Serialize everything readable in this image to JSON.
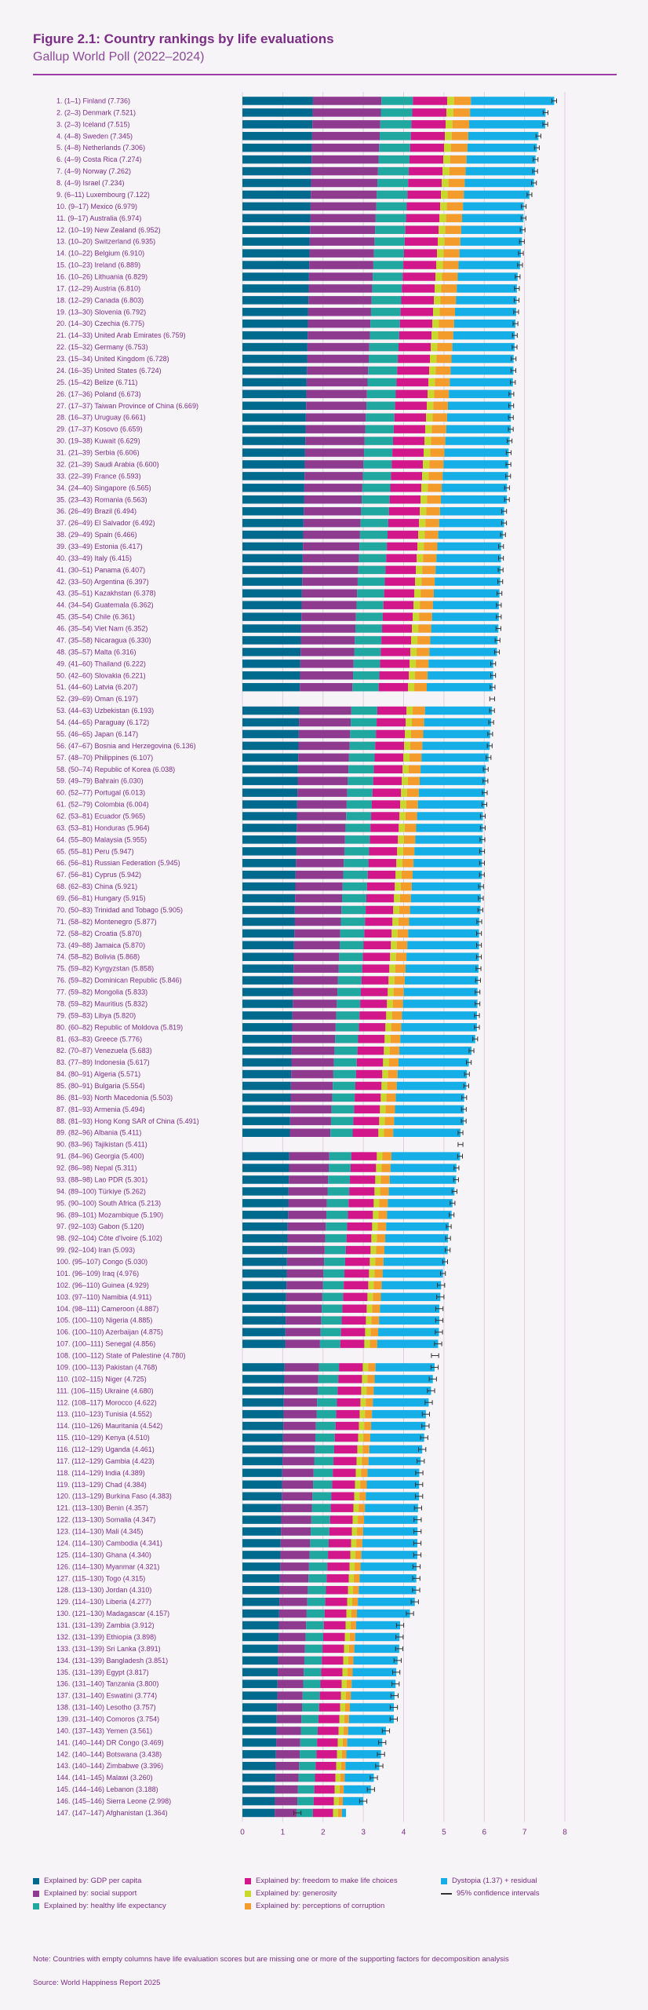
{
  "header": {
    "title": "Figure 2.1: Country rankings by life evaluations",
    "subtitle": "Gallup World Poll (2022–2024)"
  },
  "legend": [
    {
      "label": "Explained by: GDP per capita",
      "color": "#006a8e"
    },
    {
      "label": "Explained by: social support",
      "color": "#8e3a8e"
    },
    {
      "label": "Explained by: healthy life expectancy",
      "color": "#1fa7a0"
    },
    {
      "label": "Explained by: freedom to make life choices",
      "color": "#d1178a"
    },
    {
      "label": "Explained by: generosity",
      "color": "#c8d82d"
    },
    {
      "label": "Explained by: perceptions of corruption",
      "color": "#f39c2b"
    },
    {
      "label": "Dystopia (1.37) + residual",
      "color": "#16aee6"
    },
    {
      "label": "95% confidence intervals",
      "color": "#333333"
    }
  ],
  "note": "Note: Countries with empty columns have life evaluation scores but are missing one or more of the supporting factors for decomposition analysis",
  "source": "Source: World Happiness Report 2025",
  "chart_data": {
    "type": "bar",
    "stacked": true,
    "orientation": "horizontal",
    "xlim": [
      0,
      8
    ],
    "xticks": [
      "0",
      "1",
      "2",
      "3",
      "4",
      "5",
      "6",
      "7",
      "8"
    ],
    "grid": true,
    "dystopia": 1.37,
    "labels": [
      "1. (1–1) Finland (7.736)",
      "2. (2–3) Denmark (7.521)",
      "3. (2–3) Iceland (7.515)",
      "4. (4–8) Sweden (7.345)",
      "5. (4–8) Netherlands (7.306)",
      "6. (4–9) Costa Rica (7.274)",
      "7. (4–9) Norway (7.262)",
      "8. (4–9) Israel (7.234)",
      "9. (6–11) Luxembourg (7.122)",
      "10. (9–17) Mexico (6.979)",
      "11. (9–17) Australia (6.974)",
      "12. (10–19) New Zealand (6.952)",
      "13. (10–20) Switzerland (6.935)",
      "14. (10–22) Belgium (6.910)",
      "15. (10–23) Ireland (6.889)",
      "16. (10–26) Lithuania (6.829)",
      "17. (12–29) Austria (6.810)",
      "18. (12–29) Canada (6.803)",
      "19. (13–30) Slovenia (6.792)",
      "20. (14–30) Czechia (6.775)",
      "21. (14–33) United Arab Emirates (6.759)",
      "22. (15–32) Germany (6.753)",
      "23. (15–34) United Kingdom (6.728)",
      "24. (16–35) United States (6.724)",
      "25. (15–42) Belize (6.711)",
      "26. (17–36) Poland (6.673)",
      "27. (17–37) Taiwan Province of China (6.669)",
      "28. (16–37) Uruguay (6.661)",
      "29. (17–37) Kosovo (6.659)",
      "30. (19–38) Kuwait (6.629)",
      "31. (21–39) Serbia (6.606)",
      "32. (21–39) Saudi Arabia (6.600)",
      "33. (22–39) France (6.593)",
      "34. (24–40) Singapore (6.565)",
      "35. (23–43) Romania (6.563)",
      "36. (26–49) Brazil (6.494)",
      "37. (26–49) El Salvador (6.492)",
      "38. (29–49) Spain (6.466)",
      "39. (33–49) Estonia (6.417)",
      "40. (33–49) Italy (6.415)",
      "41. (30–51) Panama (6.407)",
      "42. (33–50) Argentina (6.397)",
      "43. (35–51) Kazakhstan (6.378)",
      "44. (34–54) Guatemala (6.362)",
      "45. (35–54) Chile (6.361)",
      "46. (35–54) Viet Nam (6.352)",
      "47. (35–58) Nicaragua (6.330)",
      "48. (35–57) Malta (6.316)",
      "49. (41–60) Thailand (6.222)",
      "50. (42–60) Slovakia (6.221)",
      "51. (44–60) Latvia (6.207)",
      "52. (39–69) Oman (6.197)",
      "53. (44–63) Uzbekistan (6.193)",
      "54. (44–65) Paraguay (6.172)",
      "55. (46–65) Japan (6.147)",
      "56. (47–67) Bosnia and Herzegovina (6.136)",
      "57. (48–70) Philippines (6.107)",
      "58. (50–74) Republic of Korea (6.038)",
      "59. (49–79) Bahrain (6.030)",
      "60. (52–77) Portugal (6.013)",
      "61. (52–79) Colombia (6.004)",
      "62. (53–81) Ecuador (5.965)",
      "63. (53–81) Honduras (5.964)",
      "64. (55–80) Malaysia (5.955)",
      "65. (55–81) Peru (5.947)",
      "66. (56–81) Russian Federation (5.945)",
      "67. (56–81) Cyprus (5.942)",
      "68. (62–83) China (5.921)",
      "69. (56–81) Hungary (5.915)",
      "70. (50–83) Trinidad and Tobago (5.905)",
      "71. (58–82) Montenegro (5.877)",
      "72. (58–82) Croatia (5.870)",
      "73. (49–88) Jamaica (5.870)",
      "74. (58–82) Bolivia (5.868)",
      "75. (59–82) Kyrgyzstan (5.858)",
      "76. (59–82) Dominican Republic (5.846)",
      "77. (59–82) Mongolia (5.833)",
      "78. (59–82) Mauritius (5.832)",
      "79. (59–83) Libya (5.820)",
      "80. (60–82) Republic of Moldova (5.819)",
      "81. (63–83) Greece (5.776)",
      "82. (70–87) Venezuela (5.683)",
      "83. (77–89) Indonesia (5.617)",
      "84. (80–91) Algeria (5.571)",
      "85. (80–91) Bulgaria (5.554)",
      "86. (81–93) North Macedonia (5.503)",
      "87. (81–93) Armenia (5.494)",
      "88. (81–93) Hong Kong SAR of China (5.491)",
      "89. (82–96) Albania (5.411)",
      "90. (83–96) Tajikistan (5.411)",
      "91. (84–96) Georgia (5.400)",
      "92. (86–98) Nepal (5.311)",
      "93. (88–98) Lao PDR (5.301)",
      "94. (89–100) Türkiye (5.262)",
      "95. (90–100) South Africa (5.213)",
      "96. (89–101) Mozambique (5.190)",
      "97. (92–103) Gabon (5.120)",
      "98. (92–104) Côte d'Ivoire (5.102)",
      "99. (92–104) Iran (5.093)",
      "100. (95–107) Congo (5.030)",
      "101. (96–109) Iraq (4.976)",
      "102. (96–110) Guinea (4.929)",
      "103. (97–110) Namibia (4.911)",
      "104. (98–111) Cameroon (4.887)",
      "105. (100–110) Nigeria (4.885)",
      "106. (100–110) Azerbaijan (4.875)",
      "107. (100–111) Senegal (4.856)",
      "108. (100–112) State of Palestine (4.780)",
      "109. (100–113) Pakistan (4.768)",
      "110. (102–115) Niger (4.725)",
      "111. (106–115) Ukraine (4.680)",
      "112. (108–117) Morocco (4.622)",
      "113. (110–123) Tunisia (4.552)",
      "114. (110–126) Mauritania (4.542)",
      "115. (110–129) Kenya (4.510)",
      "116. (112–129) Uganda (4.461)",
      "117. (112–129) Gambia (4.423)",
      "118. (114–129) India (4.389)",
      "119. (113–129) Chad (4.384)",
      "120. (113–129) Burkina Faso (4.383)",
      "121. (113–130) Benin (4.357)",
      "122. (113–130) Somalia (4.347)",
      "123. (114–130) Mali (4.345)",
      "124. (114–130) Cambodia (4.341)",
      "125. (114–130) Ghana (4.340)",
      "126. (114–130) Myanmar (4.321)",
      "127. (115–130) Togo (4.315)",
      "128. (113–130) Jordan (4.310)",
      "129. (114–130) Liberia (4.277)",
      "130. (121–130) Madagascar (4.157)",
      "131. (131–139) Zambia (3.912)",
      "132. (131–139) Ethiopia (3.898)",
      "133. (131–139) Sri Lanka (3.891)",
      "134. (131–139) Bangladesh (3.851)",
      "135. (131–139) Egypt (3.817)",
      "136. (131–140) Tanzania (3.800)",
      "137. (131–140) Eswatini (3.774)",
      "138. (131–140) Lesotho (3.757)",
      "139. (131–140) Comoros (3.754)",
      "140. (137–143) Yemen (3.561)",
      "141. (140–144) DR Congo (3.469)",
      "142. (140–144) Botswana (3.438)",
      "143. (140–144) Zimbabwe (3.396)",
      "144. (141–145) Malawi (3.260)",
      "145. (144–146) Lebanon (3.188)",
      "146. (145–146) Sierra Leone (2.998)",
      "147. (147–147) Afghanistan (1.364)"
    ],
    "scores": [
      7.736,
      7.521,
      7.515,
      7.345,
      7.306,
      7.274,
      7.262,
      7.234,
      7.122,
      6.979,
      6.974,
      6.952,
      6.935,
      6.91,
      6.889,
      6.829,
      6.81,
      6.803,
      6.792,
      6.775,
      6.759,
      6.753,
      6.728,
      6.724,
      6.711,
      6.673,
      6.669,
      6.661,
      6.659,
      6.629,
      6.606,
      6.6,
      6.593,
      6.565,
      6.563,
      6.494,
      6.492,
      6.466,
      6.417,
      6.415,
      6.407,
      6.397,
      6.378,
      6.362,
      6.361,
      6.352,
      6.33,
      6.316,
      6.222,
      6.221,
      6.207,
      6.197,
      6.193,
      6.172,
      6.147,
      6.136,
      6.107,
      6.038,
      6.03,
      6.013,
      6.004,
      5.965,
      5.964,
      5.955,
      5.947,
      5.945,
      5.942,
      5.921,
      5.915,
      5.905,
      5.877,
      5.87,
      5.87,
      5.868,
      5.858,
      5.846,
      5.833,
      5.832,
      5.82,
      5.819,
      5.776,
      5.683,
      5.617,
      5.571,
      5.554,
      5.503,
      5.494,
      5.491,
      5.411,
      5.411,
      5.4,
      5.311,
      5.301,
      5.262,
      5.213,
      5.19,
      5.12,
      5.102,
      5.093,
      5.03,
      4.976,
      4.929,
      4.911,
      4.887,
      4.885,
      4.875,
      4.856,
      4.78,
      4.768,
      4.725,
      4.68,
      4.622,
      4.552,
      4.542,
      4.51,
      4.461,
      4.423,
      4.389,
      4.384,
      4.383,
      4.357,
      4.347,
      4.345,
      4.341,
      4.34,
      4.321,
      4.315,
      4.31,
      4.277,
      4.157,
      3.912,
      3.898,
      3.891,
      3.851,
      3.817,
      3.8,
      3.774,
      3.757,
      3.754,
      3.561,
      3.469,
      3.438,
      3.396,
      3.26,
      3.188,
      2.998,
      1.364
    ],
    "missing_factors": [
      "52. (39–69) Oman (6.197)",
      "90. (83–96) Tajikistan (5.411)",
      "108. (100–112) State of Palestine (4.780)"
    ]
  }
}
